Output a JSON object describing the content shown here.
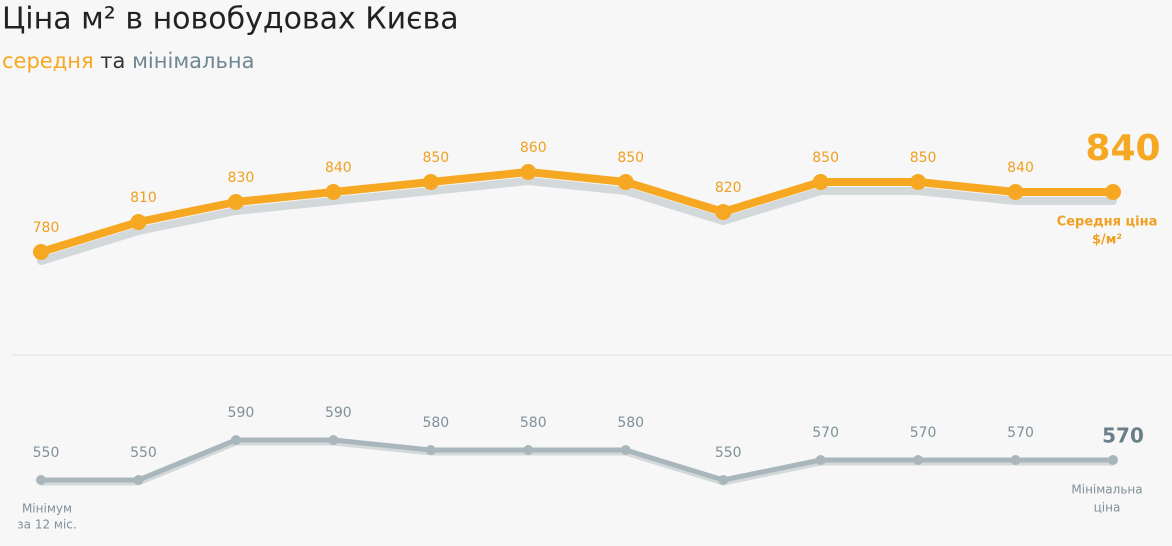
{
  "title": "Ціна м² в новобудовах Києва",
  "subtitle": {
    "average": "середня",
    "and": "та",
    "minimum": "мінімальна"
  },
  "chart_data": [
    {
      "type": "line",
      "color": "#f7a823",
      "label_color": "#f0a020",
      "values": [
        780,
        810,
        830,
        840,
        850,
        860,
        850,
        820,
        850,
        850,
        840,
        840
      ],
      "ylim": [
        740,
        880
      ],
      "end_note": [
        "Середня ціна",
        "$/м²"
      ]
    },
    {
      "type": "line",
      "color": "#a9b7bd",
      "label_color": "#7f9199",
      "values": [
        550,
        550,
        590,
        590,
        580,
        580,
        580,
        550,
        570,
        570,
        570,
        570
      ],
      "ylim": [
        530,
        610
      ],
      "start_note": [
        "Мінімум",
        "за 12 міс."
      ],
      "end_note": [
        "Мінімальна",
        "ціна"
      ]
    }
  ]
}
